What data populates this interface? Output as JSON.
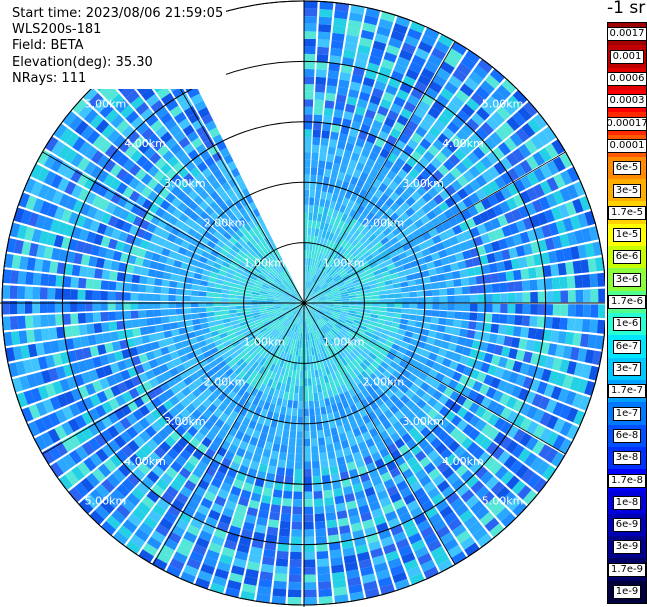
{
  "header": {
    "start_time": "Start time: 2023/08/06 21:59:05",
    "instrument": "WLS200s-181",
    "field": "Field: BETA",
    "elevation": "Elevation(deg): 35.30",
    "nrays": "NRays: 111"
  },
  "colorbar": {
    "title": "-1 sr",
    "labels": [
      "0.0017",
      "0.001",
      "0.0006",
      "0.0003",
      "0.00017",
      "0.0001",
      "6e-5",
      "3e-5",
      "1.7e-5",
      "1e-5",
      "6e-6",
      "3e-6",
      "1.7e-6",
      "1e-6",
      "6e-7",
      "3e-7",
      "1.7e-7",
      "1e-7",
      "6e-8",
      "3e-8",
      "1.7e-8",
      "1e-8",
      "6e-9",
      "3e-9",
      "1.7e-9",
      "1e-9"
    ],
    "colors": [
      "#a00000",
      "#c00000",
      "#e00000",
      "#ff0000",
      "#ff2800",
      "#ff5a00",
      "#ff8c00",
      "#ffae00",
      "#ffd200",
      "#ffff00",
      "#c8ff00",
      "#8cff3c",
      "#50ff8c",
      "#28ffd2",
      "#00e6ff",
      "#00c8ff",
      "#00a0ff",
      "#0078ff",
      "#0050ff",
      "#0030ff",
      "#0000ff",
      "#0000dc",
      "#0000b4",
      "#00008c",
      "#000064",
      "#00003c"
    ]
  },
  "chart_data": {
    "type": "polar-ppi",
    "field": "BETA",
    "elevation_deg": 35.3,
    "nrays": 111,
    "range_rings_km": [
      1,
      2,
      3,
      4,
      5
    ],
    "ring_labels": [
      "1.00km",
      "2.00km",
      "3.00km",
      "4.00km",
      "5.00km"
    ],
    "max_range_km": 5.0,
    "spoke_interval_deg": 30,
    "missing_sector_deg": [
      334,
      360
    ],
    "grid": true,
    "value_range": [
      1e-09,
      0.0017
    ],
    "dominant_values": "mostly 1e-8 to 1e-7 at far range, increasing toward 1e-6 near the center"
  }
}
